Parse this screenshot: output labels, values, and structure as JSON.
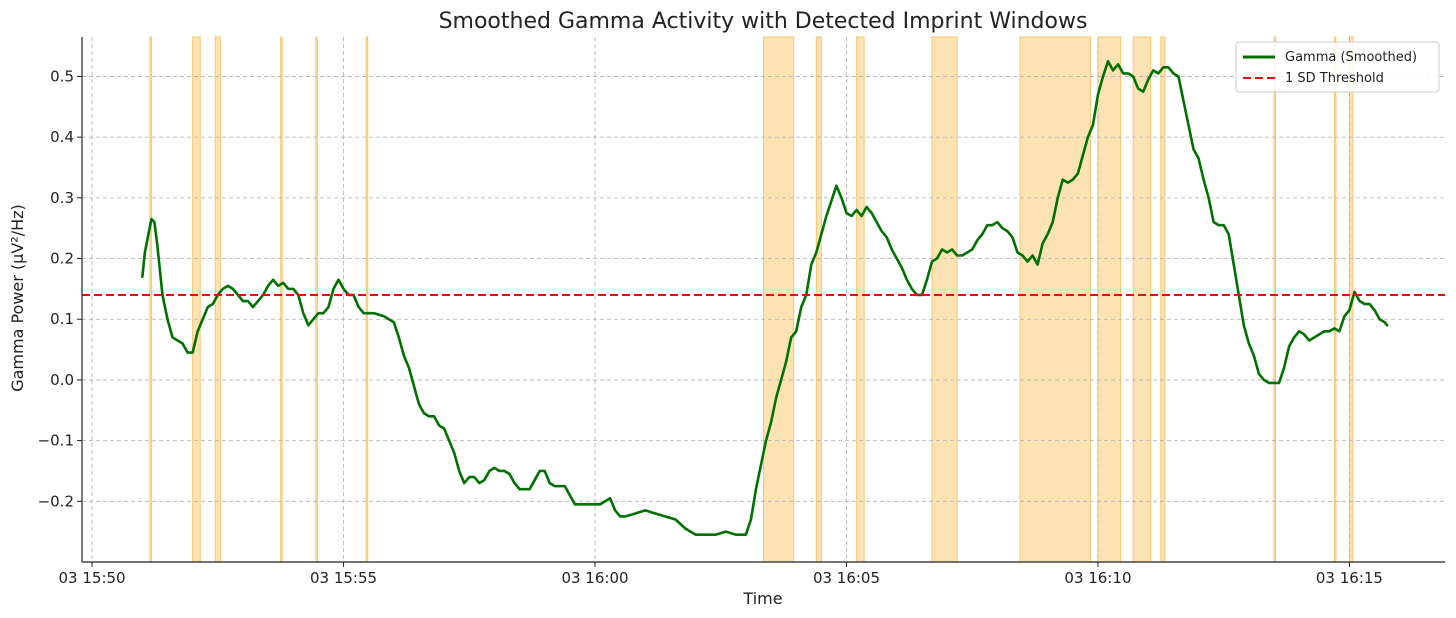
{
  "chart_data": {
    "type": "line",
    "title": "Smoothed Gamma Activity with Detected Imprint Windows",
    "xlabel": "Time",
    "ylabel": "Gamma Power (µV²/Hz)",
    "x_unit": "minutes of clock time (15:50 = 950)",
    "xlim": [
      "15:49.8",
      "16:16.9"
    ],
    "ylim": [
      -0.3,
      0.565
    ],
    "grid": true,
    "legend_position": "top-right",
    "x_ticks": [
      {
        "value": "15:50",
        "label": "03 15:50"
      },
      {
        "value": "15:55",
        "label": "03 15:55"
      },
      {
        "value": "16:00",
        "label": "03 16:00"
      },
      {
        "value": "16:05",
        "label": "03 16:05"
      },
      {
        "value": "16:10",
        "label": "03 16:10"
      },
      {
        "value": "16:15",
        "label": "03 16:15"
      }
    ],
    "y_ticks": [
      {
        "value": -0.2,
        "label": "−0.2"
      },
      {
        "value": -0.1,
        "label": "−0.1"
      },
      {
        "value": 0.0,
        "label": "0.0"
      },
      {
        "value": 0.1,
        "label": "0.1"
      },
      {
        "value": 0.2,
        "label": "0.2"
      },
      {
        "value": 0.3,
        "label": "0.3"
      },
      {
        "value": 0.4,
        "label": "0.4"
      },
      {
        "value": 0.5,
        "label": "0.5"
      }
    ],
    "series": [
      {
        "name": "Gamma (Smoothed)",
        "color": "#007000",
        "style": "solid",
        "points": [
          [
            "15:51.00",
            0.17
          ],
          [
            "15:51.05",
            0.21
          ],
          [
            "15:51.12",
            0.24
          ],
          [
            "15:51.18",
            0.265
          ],
          [
            "15:51.24",
            0.26
          ],
          [
            "15:51.30",
            0.22
          ],
          [
            "15:51.35",
            0.18
          ],
          [
            "15:51.40",
            0.14
          ],
          [
            "15:51.50",
            0.1
          ],
          [
            "15:51.60",
            0.07
          ],
          [
            "15:51.70",
            0.065
          ],
          [
            "15:51.80",
            0.06
          ],
          [
            "15:51.90",
            0.045
          ],
          [
            "15:52.00",
            0.045
          ],
          [
            "15:52.10",
            0.08
          ],
          [
            "15:52.20",
            0.1
          ],
          [
            "15:52.30",
            0.12
          ],
          [
            "15:52.40",
            0.125
          ],
          [
            "15:52.50",
            0.14
          ],
          [
            "15:52.60",
            0.15
          ],
          [
            "15:52.70",
            0.155
          ],
          [
            "15:52.80",
            0.15
          ],
          [
            "15:52.90",
            0.14
          ],
          [
            "15:53.00",
            0.13
          ],
          [
            "15:53.10",
            0.13
          ],
          [
            "15:53.20",
            0.12
          ],
          [
            "15:53.30",
            0.13
          ],
          [
            "15:53.40",
            0.14
          ],
          [
            "15:53.50",
            0.155
          ],
          [
            "15:53.60",
            0.165
          ],
          [
            "15:53.70",
            0.155
          ],
          [
            "15:53.80",
            0.16
          ],
          [
            "15:53.90",
            0.15
          ],
          [
            "15:54.00",
            0.15
          ],
          [
            "15:54.10",
            0.14
          ],
          [
            "15:54.20",
            0.11
          ],
          [
            "15:54.30",
            0.09
          ],
          [
            "15:54.40",
            0.1
          ],
          [
            "15:54.50",
            0.11
          ],
          [
            "15:54.60",
            0.11
          ],
          [
            "15:54.70",
            0.12
          ],
          [
            "15:54.80",
            0.15
          ],
          [
            "15:54.90",
            0.165
          ],
          [
            "15:55.00",
            0.15
          ],
          [
            "15:55.10",
            0.14
          ],
          [
            "15:55.20",
            0.14
          ],
          [
            "15:55.30",
            0.12
          ],
          [
            "15:55.40",
            0.11
          ],
          [
            "15:55.50",
            0.11
          ],
          [
            "15:55.60",
            0.11
          ],
          [
            "15:55.80",
            0.105
          ],
          [
            "15:56.00",
            0.095
          ],
          [
            "15:56.10",
            0.07
          ],
          [
            "15:56.20",
            0.04
          ],
          [
            "15:56.30",
            0.02
          ],
          [
            "15:56.40",
            -0.01
          ],
          [
            "15:56.50",
            -0.04
          ],
          [
            "15:56.60",
            -0.055
          ],
          [
            "15:56.70",
            -0.06
          ],
          [
            "15:56.80",
            -0.06
          ],
          [
            "15:56.90",
            -0.075
          ],
          [
            "15:57.00",
            -0.08
          ],
          [
            "15:57.10",
            -0.1
          ],
          [
            "15:57.20",
            -0.12
          ],
          [
            "15:57.30",
            -0.15
          ],
          [
            "15:57.40",
            -0.17
          ],
          [
            "15:57.50",
            -0.16
          ],
          [
            "15:57.60",
            -0.16
          ],
          [
            "15:57.70",
            -0.17
          ],
          [
            "15:57.80",
            -0.165
          ],
          [
            "15:57.90",
            -0.15
          ],
          [
            "15:58.00",
            -0.145
          ],
          [
            "15:58.10",
            -0.15
          ],
          [
            "15:58.20",
            -0.15
          ],
          [
            "15:58.30",
            -0.155
          ],
          [
            "15:58.40",
            -0.17
          ],
          [
            "15:58.50",
            -0.18
          ],
          [
            "15:58.60",
            -0.18
          ],
          [
            "15:58.70",
            -0.18
          ],
          [
            "15:58.80",
            -0.165
          ],
          [
            "15:58.90",
            -0.15
          ],
          [
            "15:59.00",
            -0.15
          ],
          [
            "15:59.10",
            -0.17
          ],
          [
            "15:59.20",
            -0.175
          ],
          [
            "15:59.30",
            -0.175
          ],
          [
            "15:59.40",
            -0.175
          ],
          [
            "15:59.50",
            -0.19
          ],
          [
            "15:59.60",
            -0.205
          ],
          [
            "15:59.70",
            -0.205
          ],
          [
            "15:59.80",
            -0.205
          ],
          [
            "15:59.90",
            -0.205
          ],
          [
            "16:00.00",
            -0.205
          ],
          [
            "16:00.10",
            -0.205
          ],
          [
            "16:00.20",
            -0.2
          ],
          [
            "16:00.30",
            -0.195
          ],
          [
            "16:00.40",
            -0.215
          ],
          [
            "16:00.50",
            -0.225
          ],
          [
            "16:00.60",
            -0.225
          ],
          [
            "16:00.80",
            -0.22
          ],
          [
            "16:01.00",
            -0.215
          ],
          [
            "16:01.20",
            -0.22
          ],
          [
            "16:01.40",
            -0.225
          ],
          [
            "16:01.60",
            -0.23
          ],
          [
            "16:01.80",
            -0.245
          ],
          [
            "16:02.00",
            -0.255
          ],
          [
            "16:02.20",
            -0.255
          ],
          [
            "16:02.40",
            -0.255
          ],
          [
            "16:02.60",
            -0.25
          ],
          [
            "16:02.80",
            -0.255
          ],
          [
            "16:03.00",
            -0.255
          ],
          [
            "16:03.10",
            -0.23
          ],
          [
            "16:03.20",
            -0.18
          ],
          [
            "16:03.30",
            -0.14
          ],
          [
            "16:03.40",
            -0.1
          ],
          [
            "16:03.50",
            -0.07
          ],
          [
            "16:03.60",
            -0.03
          ],
          [
            "16:03.70",
            0.0
          ],
          [
            "16:03.80",
            0.03
          ],
          [
            "16:03.90",
            0.07
          ],
          [
            "16:04.00",
            0.08
          ],
          [
            "16:04.10",
            0.12
          ],
          [
            "16:04.20",
            0.14
          ],
          [
            "16:04.30",
            0.19
          ],
          [
            "16:04.40",
            0.21
          ],
          [
            "16:04.50",
            0.24
          ],
          [
            "16:04.60",
            0.27
          ],
          [
            "16:04.70",
            0.295
          ],
          [
            "16:04.80",
            0.32
          ],
          [
            "16:04.90",
            0.3
          ],
          [
            "16:05.00",
            0.275
          ],
          [
            "16:05.10",
            0.27
          ],
          [
            "16:05.20",
            0.28
          ],
          [
            "16:05.30",
            0.27
          ],
          [
            "16:05.40",
            0.285
          ],
          [
            "16:05.50",
            0.275
          ],
          [
            "16:05.60",
            0.26
          ],
          [
            "16:05.70",
            0.245
          ],
          [
            "16:05.80",
            0.235
          ],
          [
            "16:05.90",
            0.215
          ],
          [
            "16:06.00",
            0.2
          ],
          [
            "16:06.10",
            0.185
          ],
          [
            "16:06.20",
            0.165
          ],
          [
            "16:06.30",
            0.15
          ],
          [
            "16:06.40",
            0.14
          ],
          [
            "16:06.50",
            0.14
          ],
          [
            "16:06.60",
            0.165
          ],
          [
            "16:06.70",
            0.195
          ],
          [
            "16:06.80",
            0.2
          ],
          [
            "16:06.90",
            0.215
          ],
          [
            "16:07.00",
            0.21
          ],
          [
            "16:07.10",
            0.215
          ],
          [
            "16:07.20",
            0.205
          ],
          [
            "16:07.30",
            0.205
          ],
          [
            "16:07.40",
            0.21
          ],
          [
            "16:07.50",
            0.215
          ],
          [
            "16:07.60",
            0.23
          ],
          [
            "16:07.70",
            0.24
          ],
          [
            "16:07.80",
            0.255
          ],
          [
            "16:07.90",
            0.255
          ],
          [
            "16:08.00",
            0.26
          ],
          [
            "16:08.10",
            0.25
          ],
          [
            "16:08.20",
            0.245
          ],
          [
            "16:08.30",
            0.235
          ],
          [
            "16:08.40",
            0.21
          ],
          [
            "16:08.50",
            0.205
          ],
          [
            "16:08.60",
            0.195
          ],
          [
            "16:08.70",
            0.205
          ],
          [
            "16:08.80",
            0.19
          ],
          [
            "16:08.90",
            0.225
          ],
          [
            "16:09.00",
            0.24
          ],
          [
            "16:09.10",
            0.26
          ],
          [
            "16:09.20",
            0.3
          ],
          [
            "16:09.30",
            0.33
          ],
          [
            "16:09.40",
            0.325
          ],
          [
            "16:09.50",
            0.33
          ],
          [
            "16:09.60",
            0.34
          ],
          [
            "16:09.70",
            0.37
          ],
          [
            "16:09.80",
            0.4
          ],
          [
            "16:09.90",
            0.42
          ],
          [
            "16:10.00",
            0.47
          ],
          [
            "16:10.10",
            0.5
          ],
          [
            "16:10.20",
            0.525
          ],
          [
            "16:10.30",
            0.51
          ],
          [
            "16:10.40",
            0.52
          ],
          [
            "16:10.50",
            0.505
          ],
          [
            "16:10.60",
            0.505
          ],
          [
            "16:10.70",
            0.5
          ],
          [
            "16:10.80",
            0.48
          ],
          [
            "16:10.90",
            0.475
          ],
          [
            "16:11.00",
            0.495
          ],
          [
            "16:11.10",
            0.51
          ],
          [
            "16:11.20",
            0.505
          ],
          [
            "16:11.30",
            0.515
          ],
          [
            "16:11.40",
            0.515
          ],
          [
            "16:11.50",
            0.505
          ],
          [
            "16:11.60",
            0.5
          ],
          [
            "16:11.70",
            0.46
          ],
          [
            "16:11.80",
            0.42
          ],
          [
            "16:11.90",
            0.38
          ],
          [
            "16:12.00",
            0.365
          ],
          [
            "16:12.10",
            0.33
          ],
          [
            "16:12.20",
            0.3
          ],
          [
            "16:12.30",
            0.26
          ],
          [
            "16:12.40",
            0.255
          ],
          [
            "16:12.50",
            0.255
          ],
          [
            "16:12.60",
            0.24
          ],
          [
            "16:12.70",
            0.19
          ],
          [
            "16:12.80",
            0.14
          ],
          [
            "16:12.90",
            0.09
          ],
          [
            "16:13.00",
            0.06
          ],
          [
            "16:13.10",
            0.04
          ],
          [
            "16:13.20",
            0.01
          ],
          [
            "16:13.30",
            0.0
          ],
          [
            "16:13.40",
            -0.005
          ],
          [
            "16:13.50",
            -0.005
          ],
          [
            "16:13.60",
            -0.005
          ],
          [
            "16:13.70",
            0.02
          ],
          [
            "16:13.80",
            0.055
          ],
          [
            "16:13.90",
            0.07
          ],
          [
            "16:14.00",
            0.08
          ],
          [
            "16:14.10",
            0.075
          ],
          [
            "16:14.20",
            0.065
          ],
          [
            "16:14.30",
            0.07
          ],
          [
            "16:14.40",
            0.075
          ],
          [
            "16:14.50",
            0.08
          ],
          [
            "16:14.60",
            0.08
          ],
          [
            "16:14.70",
            0.085
          ],
          [
            "16:14.80",
            0.08
          ],
          [
            "16:14.90",
            0.105
          ],
          [
            "16:15.00",
            0.115
          ],
          [
            "16:15.10",
            0.145
          ],
          [
            "16:15.20",
            0.13
          ],
          [
            "16:15.30",
            0.125
          ],
          [
            "16:15.40",
            0.125
          ],
          [
            "16:15.50",
            0.115
          ],
          [
            "16:15.60",
            0.1
          ],
          [
            "16:15.70",
            0.095
          ],
          [
            "16:15.75",
            0.09
          ]
        ]
      },
      {
        "name": "1 SD Threshold",
        "color": "#dd1111",
        "style": "dashed",
        "value": 0.14
      }
    ],
    "shaded_windows": {
      "color": "#fde3b4",
      "edge_color": "#f6c771",
      "spans": [
        [
          "15:51.15",
          "15:51.18"
        ],
        [
          "15:52.00",
          "15:52.15"
        ],
        [
          "15:52.45",
          "15:52.55"
        ],
        [
          "15:53.75",
          "15:53.77"
        ],
        [
          "15:54.45",
          "15:54.48"
        ],
        [
          "15:55.45",
          "15:55.48"
        ],
        [
          "16:03.35",
          "16:03.95"
        ],
        [
          "16:04.40",
          "16:04.50"
        ],
        [
          "16:05.20",
          "16:05.35"
        ],
        [
          "16:06.70",
          "16:07.20"
        ],
        [
          "16:08.45",
          "16:09.85"
        ],
        [
          "16:10.00",
          "16:10.45"
        ],
        [
          "16:10.70",
          "16:11.05"
        ],
        [
          "16:11.25",
          "16:11.33"
        ],
        [
          "16:13.50",
          "16:13.53"
        ],
        [
          "16:14.70",
          "16:14.72"
        ],
        [
          "16:15.00",
          "16:15.07"
        ]
      ]
    }
  }
}
